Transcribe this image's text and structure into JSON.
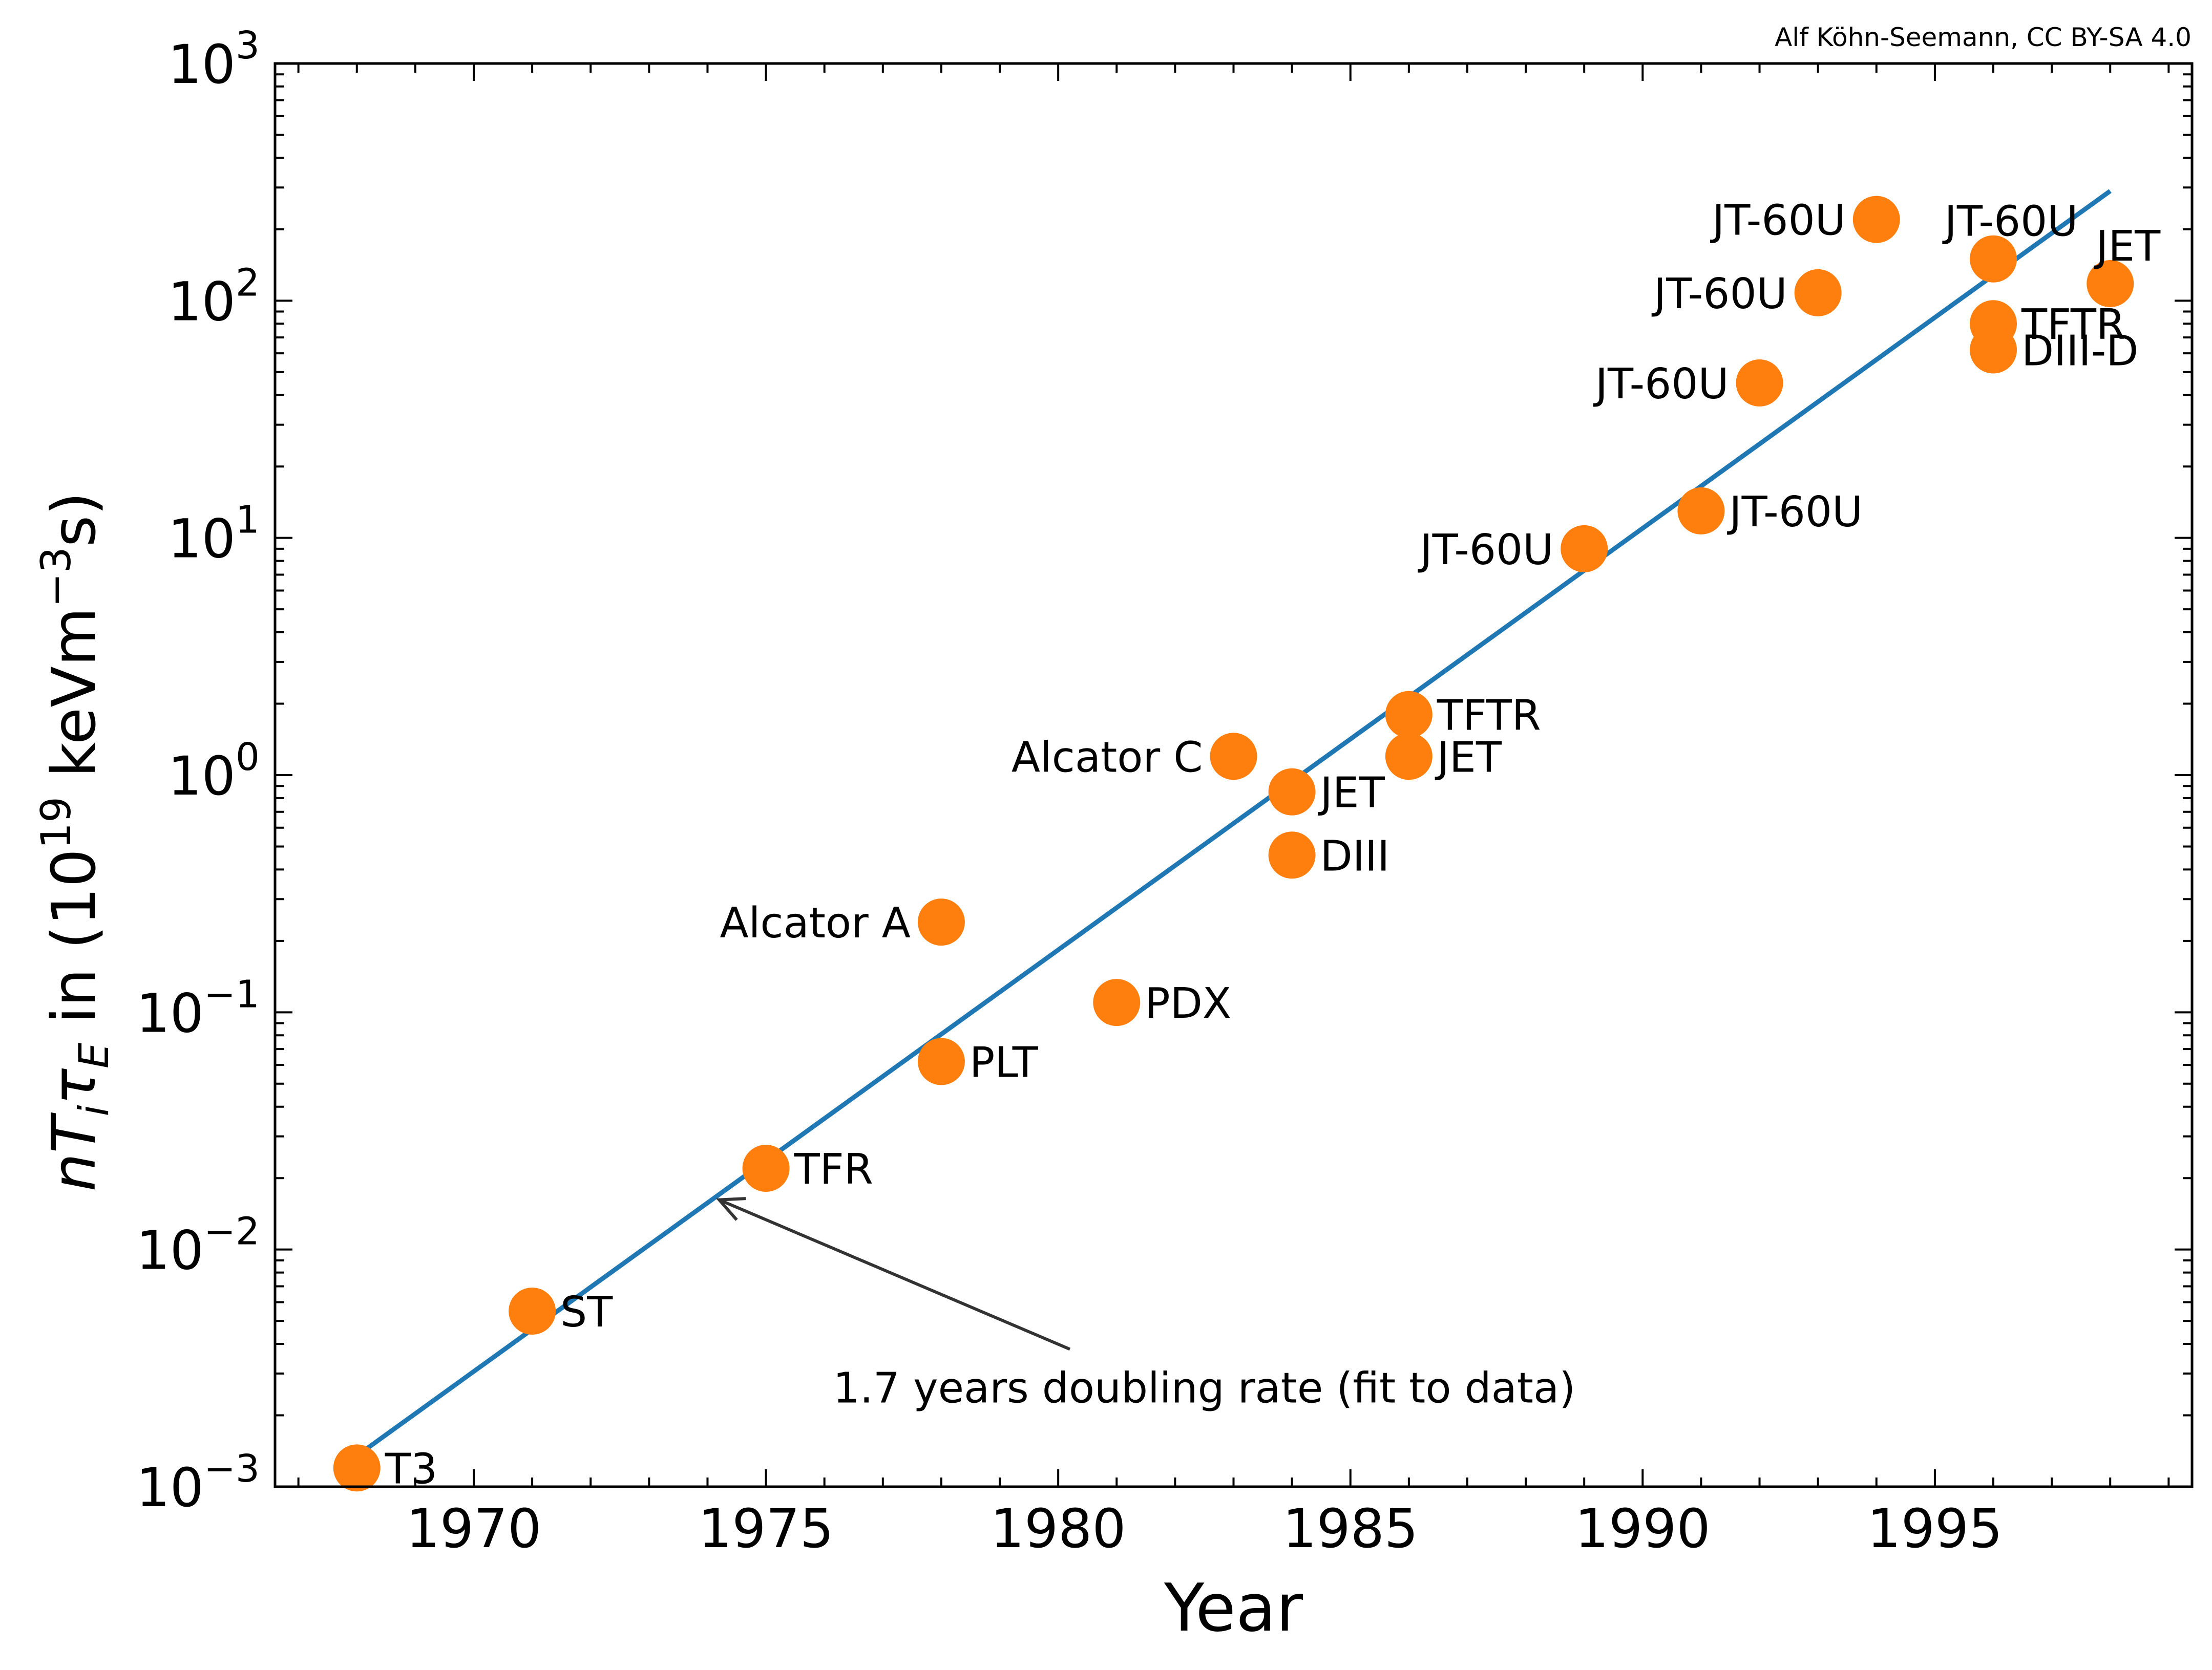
{
  "attribution": "Alf Köhn-Seemann, CC BY-SA 4.0",
  "chart_data": {
    "type": "scatter",
    "xlabel": "Year",
    "ylabel_parts": {
      "n": "n",
      "T": "T",
      "i": "i",
      "tau": "τ",
      "E": "E",
      "in": " in (10",
      "exp19": "19",
      "unit": " keVm",
      "exp_m3": "−3",
      "close": "s)"
    },
    "y_scale": "log",
    "xlim": [
      1966.6,
      1999.4
    ],
    "ylim": [
      0.001,
      1000
    ],
    "x_ticks": [
      {
        "value": 1970,
        "label": "1970"
      },
      {
        "value": 1975,
        "label": "1975"
      },
      {
        "value": 1980,
        "label": "1980"
      },
      {
        "value": 1985,
        "label": "1985"
      },
      {
        "value": 1990,
        "label": "1990"
      },
      {
        "value": 1995,
        "label": "1995"
      }
    ],
    "y_ticks": [
      {
        "value": 0.001,
        "base": "10",
        "exp": "−3"
      },
      {
        "value": 0.01,
        "base": "10",
        "exp": "−2"
      },
      {
        "value": 0.1,
        "base": "10",
        "exp": "−1"
      },
      {
        "value": 1,
        "base": "10",
        "exp": "0"
      },
      {
        "value": 10,
        "base": "10",
        "exp": "1"
      },
      {
        "value": 100,
        "base": "10",
        "exp": "2"
      },
      {
        "value": 1000,
        "base": "10",
        "exp": "3"
      }
    ],
    "grid": false,
    "colors": {
      "points": "#ff7f0e",
      "fit": "#1f77b4",
      "arrow": "#333333"
    },
    "points": [
      {
        "x": 1968,
        "y": 0.0012,
        "label": "T3",
        "side": "right"
      },
      {
        "x": 1971,
        "y": 0.0055,
        "label": "ST",
        "side": "right"
      },
      {
        "x": 1975,
        "y": 0.022,
        "label": "TFR",
        "side": "right"
      },
      {
        "x": 1978,
        "y": 0.062,
        "label": "PLT",
        "side": "right"
      },
      {
        "x": 1978,
        "y": 0.24,
        "label": "Alcator A",
        "side": "left"
      },
      {
        "x": 1981,
        "y": 0.11,
        "label": "PDX",
        "side": "right"
      },
      {
        "x": 1983,
        "y": 1.2,
        "label": "Alcator C",
        "side": "left"
      },
      {
        "x": 1984,
        "y": 0.85,
        "label": "JET",
        "side": "right"
      },
      {
        "x": 1984,
        "y": 0.46,
        "label": "DIII",
        "side": "right"
      },
      {
        "x": 1986,
        "y": 1.8,
        "label": "TFTR",
        "side": "right"
      },
      {
        "x": 1986,
        "y": 1.2,
        "label": "JET",
        "side": "right"
      },
      {
        "x": 1989,
        "y": 9.0,
        "label": "JT-60U",
        "side": "left"
      },
      {
        "x": 1991,
        "y": 13.0,
        "label": "JT-60U",
        "side": "right"
      },
      {
        "x": 1992,
        "y": 45.0,
        "label": "JT-60U",
        "side": "left"
      },
      {
        "x": 1993,
        "y": 108.0,
        "label": "JT-60U",
        "side": "left"
      },
      {
        "x": 1994,
        "y": 220.0,
        "label": "JT-60U",
        "side": "left"
      },
      {
        "x": 1996,
        "y": 150.0,
        "label": "JT-60U",
        "side": "above"
      },
      {
        "x": 1996,
        "y": 80.0,
        "label": "TFTR",
        "side": "right"
      },
      {
        "x": 1996,
        "y": 62.0,
        "label": "DIII-D",
        "side": "right"
      },
      {
        "x": 1998,
        "y": 118.0,
        "label": "JET",
        "side": "above"
      }
    ],
    "fit_line": {
      "x": [
        1968,
        1998
      ],
      "y": [
        0.00135,
        290
      ]
    },
    "annotation": {
      "text": "1.7 years doubling rate (fit to data)",
      "text_anchor": {
        "x": 1982.5,
        "y": 0.0026
      },
      "arrow_tail": {
        "x": 1980.2,
        "y": 0.0038
      },
      "arrow_head": {
        "x": 1974.2,
        "y": 0.0162
      }
    }
  }
}
